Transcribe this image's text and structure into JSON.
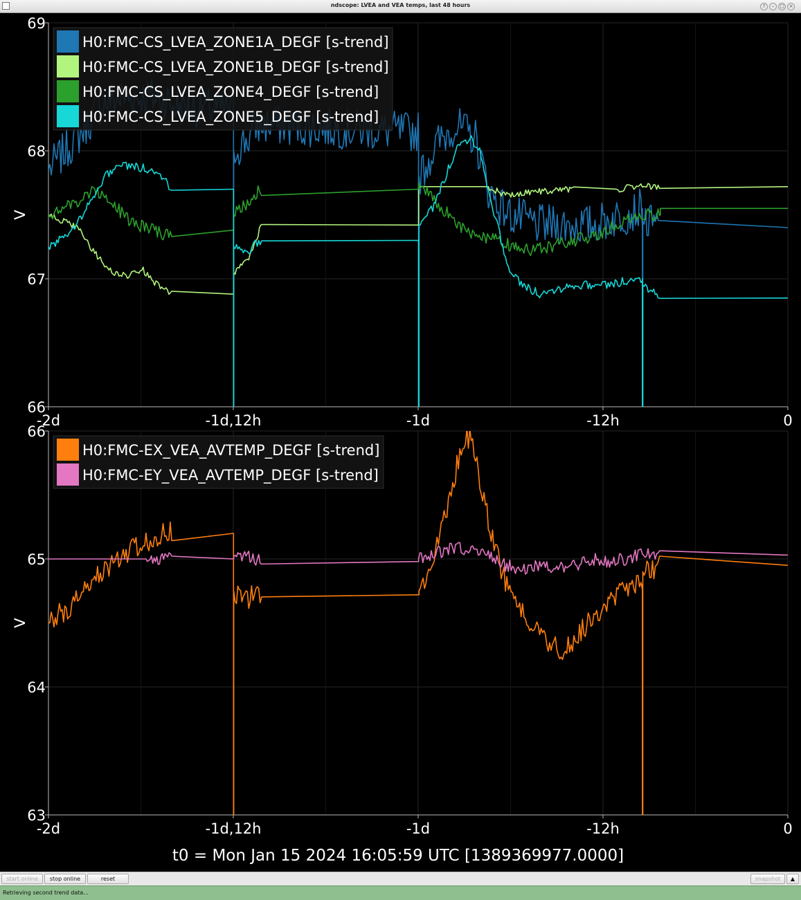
{
  "window": {
    "title": "ndscope: LVEA and VEA temps, last 48 hours"
  },
  "axes": {
    "ylabel": "V",
    "t0_label": "t0 = Mon Jan 15 2024 16:05:59 UTC [1389369977.0000]"
  },
  "toolbar": {
    "start_online": "start online",
    "stop_online": "stop online",
    "reset": "reset",
    "snapshot": "snapshot"
  },
  "status": {
    "text": "Retrieving second trend data..."
  },
  "chart_data": [
    {
      "type": "line",
      "title": "",
      "xlabel": "",
      "ylabel": "V",
      "xlim": [
        -172800,
        0
      ],
      "ylim": [
        66,
        69
      ],
      "xticks": [
        {
          "value": -172800,
          "label": "-2d"
        },
        {
          "value": -129600,
          "label": "-1d,12h"
        },
        {
          "value": -86400,
          "label": "-1d"
        },
        {
          "value": -43200,
          "label": "-12h"
        },
        {
          "value": 0,
          "label": "0"
        }
      ],
      "yticks": [
        66,
        67,
        68,
        69
      ],
      "grid": true,
      "legend": "top-left",
      "gap": [
        -126000,
        -124800
      ],
      "series": [
        {
          "name": "H0:FMC-CS_LVEA_ZONE1A_DEGF [s-trend]",
          "color": "#1f77b4",
          "noise": 0.16,
          "points": [
            [
              -172800,
              67.85
            ],
            [
              -165000,
              68.15
            ],
            [
              -160000,
              68.38
            ],
            [
              -155000,
              68.42
            ],
            [
              -150000,
              68.42
            ],
            [
              -145000,
              68.4
            ],
            [
              -144000,
              68.35
            ],
            [
              -129600,
              68.32
            ],
            [
              -129550,
              66
            ],
            [
              -129500,
              68.0
            ],
            [
              -126000,
              68.1
            ],
            [
              -124000,
              68.2
            ],
            [
              -120000,
              68.2
            ],
            [
              -90000,
              68.15
            ],
            [
              -86400,
              68.15
            ],
            [
              -86300,
              66
            ],
            [
              -86200,
              67.8
            ],
            [
              -82000,
              68.05
            ],
            [
              -78000,
              68.2
            ],
            [
              -73000,
              68.1
            ],
            [
              -70000,
              67.7
            ],
            [
              -68000,
              67.6
            ],
            [
              -65000,
              67.5
            ],
            [
              -58000,
              67.42
            ],
            [
              -52000,
              67.42
            ],
            [
              -46000,
              67.42
            ],
            [
              -40000,
              67.48
            ],
            [
              -34000,
              67.55
            ],
            [
              -34000,
              66
            ],
            [
              -33900,
              67.45
            ],
            [
              -30000,
              67.4
            ],
            [
              0,
              67.4
            ]
          ]
        },
        {
          "name": "H0:FMC-CS_LVEA_ZONE1B_DEGF [s-trend]",
          "color": "#b2f57e",
          "noise": 0.025,
          "points": [
            [
              -172800,
              67.5
            ],
            [
              -166000,
              67.4
            ],
            [
              -162000,
              67.2
            ],
            [
              -158000,
              67.05
            ],
            [
              -154000,
              67.02
            ],
            [
              -151000,
              67.08
            ],
            [
              -149000,
              67.0
            ],
            [
              -146000,
              66.92
            ],
            [
              -144000,
              66.88
            ],
            [
              -129600,
              66.88
            ],
            [
              -129500,
              67.05
            ],
            [
              -126000,
              67.15
            ],
            [
              -123500,
              67.38
            ],
            [
              -123000,
              67.42
            ],
            [
              -86400,
              67.42
            ],
            [
              -86300,
              67.72
            ],
            [
              -70000,
              67.72
            ],
            [
              -66000,
              67.65
            ],
            [
              -60000,
              67.68
            ],
            [
              -50000,
              67.7
            ],
            [
              -40000,
              67.7
            ],
            [
              -35000,
              67.72
            ],
            [
              -30000,
              67.72
            ],
            [
              0,
              67.72
            ]
          ]
        },
        {
          "name": "H0:FMC-CS_LVEA_ZONE4_DEGF [s-trend]",
          "color": "#2ca02c",
          "noise": 0.05,
          "points": [
            [
              -172800,
              67.5
            ],
            [
              -166000,
              67.6
            ],
            [
              -162000,
              67.7
            ],
            [
              -158000,
              67.6
            ],
            [
              -154000,
              67.45
            ],
            [
              -150000,
              67.4
            ],
            [
              -146000,
              67.35
            ],
            [
              -144000,
              67.38
            ],
            [
              -129600,
              67.38
            ],
            [
              -129500,
              67.5
            ],
            [
              -126000,
              67.6
            ],
            [
              -123500,
              67.7
            ],
            [
              -123000,
              67.7
            ],
            [
              -86400,
              67.7
            ],
            [
              -86300,
              67.75
            ],
            [
              -82000,
              67.6
            ],
            [
              -78000,
              67.45
            ],
            [
              -74000,
              67.35
            ],
            [
              -68000,
              67.3
            ],
            [
              -62000,
              67.22
            ],
            [
              -56000,
              67.25
            ],
            [
              -50000,
              67.3
            ],
            [
              -44000,
              67.35
            ],
            [
              -38000,
              67.45
            ],
            [
              -35000,
              67.5
            ],
            [
              -34000,
              67.5
            ],
            [
              -30000,
              67.5
            ],
            [
              -29800,
              67.55
            ],
            [
              0,
              67.55
            ]
          ]
        },
        {
          "name": "H0:FMC-CS_LVEA_ZONE5_DEGF [s-trend]",
          "color": "#17d7d7",
          "noise": 0.035,
          "points": [
            [
              -172800,
              67.25
            ],
            [
              -168000,
              67.35
            ],
            [
              -164000,
              67.55
            ],
            [
              -160000,
              67.78
            ],
            [
              -157000,
              67.88
            ],
            [
              -153000,
              67.88
            ],
            [
              -149000,
              67.85
            ],
            [
              -146000,
              67.8
            ],
            [
              -144000,
              67.7
            ],
            [
              -129600,
              67.7
            ],
            [
              -129550,
              66
            ],
            [
              -129500,
              67.25
            ],
            [
              -126000,
              67.22
            ],
            [
              -124000,
              67.28
            ],
            [
              -123000,
              67.3
            ],
            [
              -86400,
              67.3
            ],
            [
              -86300,
              66
            ],
            [
              -86200,
              67.42
            ],
            [
              -83000,
              67.55
            ],
            [
              -80000,
              67.8
            ],
            [
              -77000,
              68.05
            ],
            [
              -74000,
              68.1
            ],
            [
              -72000,
              68.0
            ],
            [
              -70000,
              67.7
            ],
            [
              -67000,
              67.3
            ],
            [
              -65000,
              67.05
            ],
            [
              -62000,
              66.95
            ],
            [
              -58000,
              66.88
            ],
            [
              -54000,
              66.92
            ],
            [
              -50000,
              66.95
            ],
            [
              -46000,
              66.95
            ],
            [
              -42000,
              66.95
            ],
            [
              -38000,
              66.98
            ],
            [
              -35000,
              67.0
            ],
            [
              -34000,
              67.0
            ],
            [
              -34000,
              66
            ],
            [
              -33900,
              66.95
            ],
            [
              -32000,
              66.92
            ],
            [
              -30000,
              66.85
            ],
            [
              0,
              66.85
            ]
          ]
        }
      ]
    },
    {
      "type": "line",
      "title": "",
      "xlabel": "",
      "ylabel": "V",
      "xlim": [
        -172800,
        0
      ],
      "ylim": [
        63,
        66
      ],
      "xticks": [
        {
          "value": -172800,
          "label": "-2d"
        },
        {
          "value": -129600,
          "label": "-1d,12h"
        },
        {
          "value": -86400,
          "label": "-1d"
        },
        {
          "value": -43200,
          "label": "-12h"
        },
        {
          "value": 0,
          "label": "0"
        }
      ],
      "yticks": [
        63,
        64,
        65,
        66
      ],
      "grid": true,
      "legend": "top-left",
      "gap": [
        -126000,
        -124800
      ],
      "series": [
        {
          "name": "H0:FMC-EX_VEA_AVTEMP_DEGF [s-trend]",
          "color": "#ff7f0e",
          "noise": 0.09,
          "points": [
            [
              -172800,
              64.5
            ],
            [
              -168000,
              64.62
            ],
            [
              -164000,
              64.78
            ],
            [
              -160000,
              64.9
            ],
            [
              -156000,
              65.02
            ],
            [
              -152000,
              65.1
            ],
            [
              -148000,
              65.18
            ],
            [
              -145000,
              65.22
            ],
            [
              -144000,
              65.2
            ],
            [
              -129600,
              65.2
            ],
            [
              -129550,
              63
            ],
            [
              -129500,
              64.75
            ],
            [
              -126000,
              64.7
            ],
            [
              -123000,
              64.72
            ],
            [
              -86400,
              64.72
            ],
            [
              -86200,
              64.75
            ],
            [
              -82000,
              65.1
            ],
            [
              -79000,
              65.5
            ],
            [
              -76000,
              65.9
            ],
            [
              -74000,
              65.98
            ],
            [
              -73000,
              65.8
            ],
            [
              -70000,
              65.3
            ],
            [
              -67000,
              64.9
            ],
            [
              -63000,
              64.65
            ],
            [
              -59000,
              64.45
            ],
            [
              -55000,
              64.32
            ],
            [
              -52000,
              64.3
            ],
            [
              -48000,
              64.45
            ],
            [
              -44000,
              64.6
            ],
            [
              -40000,
              64.72
            ],
            [
              -37000,
              64.8
            ],
            [
              -34000,
              64.8
            ],
            [
              -34000,
              63
            ],
            [
              -33900,
              64.9
            ],
            [
              -30000,
              64.95
            ],
            [
              0,
              64.95
            ]
          ]
        },
        {
          "name": "H0:FMC-EY_VEA_AVTEMP_DEGF [s-trend]",
          "color": "#e377c2",
          "noise": 0.05,
          "points": [
            [
              -172800,
              65.0
            ],
            [
              -160000,
              65.0
            ],
            [
              -150000,
              65.0
            ],
            [
              -144000,
              65.0
            ],
            [
              -129600,
              65.0
            ],
            [
              -129500,
              65.02
            ],
            [
              -126000,
              65.02
            ],
            [
              -123000,
              64.98
            ],
            [
              -86400,
              64.98
            ],
            [
              -86300,
              65.0
            ],
            [
              -82000,
              65.05
            ],
            [
              -78000,
              65.08
            ],
            [
              -74000,
              65.08
            ],
            [
              -70000,
              65.05
            ],
            [
              -66000,
              64.95
            ],
            [
              -62000,
              64.92
            ],
            [
              -58000,
              64.95
            ],
            [
              -54000,
              64.92
            ],
            [
              -50000,
              64.95
            ],
            [
              -46000,
              65.0
            ],
            [
              -42000,
              64.98
            ],
            [
              -38000,
              65.0
            ],
            [
              -35000,
              65.03
            ],
            [
              -34000,
              65.03
            ],
            [
              -30000,
              65.03
            ],
            [
              0,
              65.03
            ]
          ]
        }
      ]
    }
  ]
}
